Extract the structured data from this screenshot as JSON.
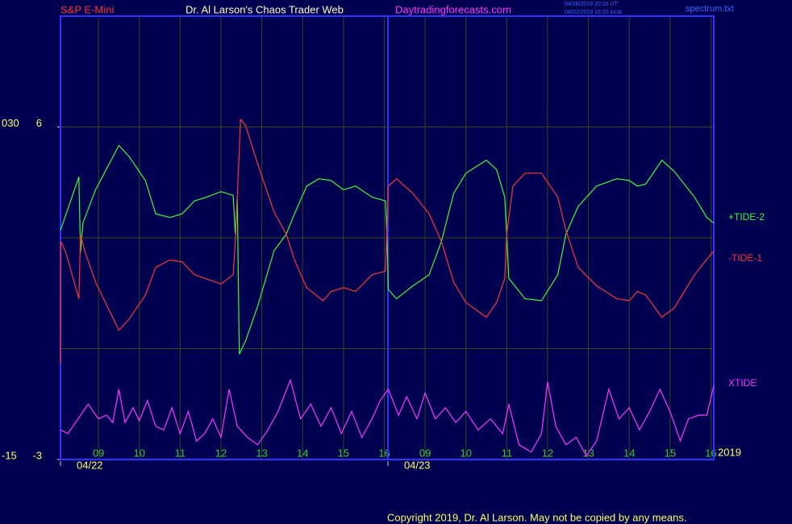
{
  "header": {
    "instrument": "S&P E-Mini",
    "site": "Dr. Al Larson's Chaos Trader Web",
    "url": "Daytradingforecasts.com",
    "time_ut": "04/28/2019 20:20 UT",
    "time_local": "04/02/2019 15:20 local",
    "file": "spectrum.txt"
  },
  "footer": {
    "copyright": "Copyright 2019, Dr. Al Larson. May not be copied by any means.",
    "year": "2019"
  },
  "chart_data": {
    "type": "line",
    "xlim": [
      0.07,
      16.07
    ],
    "xticks": [
      {
        "value": 1,
        "label": "09"
      },
      {
        "value": 2,
        "label": "10"
      },
      {
        "value": 3,
        "label": "11"
      },
      {
        "value": 4,
        "label": "12"
      },
      {
        "value": 5,
        "label": "13"
      },
      {
        "value": 6,
        "label": "14"
      },
      {
        "value": 7,
        "label": "15"
      },
      {
        "value": 8,
        "label": "16"
      },
      {
        "value": 9,
        "label": "09"
      },
      {
        "value": 10,
        "label": "10"
      },
      {
        "value": 11,
        "label": "11"
      },
      {
        "value": 12,
        "label": "12"
      },
      {
        "value": 13,
        "label": "13"
      },
      {
        "value": 14,
        "label": "14"
      },
      {
        "value": 15,
        "label": "15"
      },
      {
        "value": 16,
        "label": "16"
      }
    ],
    "date_labels": [
      {
        "value": 0.07,
        "label": "04/22"
      },
      {
        "value": 8.09,
        "label": "04/23"
      }
    ],
    "ylim": [
      -3,
      9
    ],
    "yticks": [
      -3,
      6
    ],
    "ygrid": [
      0,
      3,
      6
    ],
    "y2lim": [
      -15,
      45
    ],
    "y2ticks": [
      -15,
      {
        "value": 30,
        "label": "030"
      }
    ],
    "grid": true,
    "series": [
      {
        "name": "+TIDE-2",
        "color": "#33ff33",
        "x": [
          0.07,
          0.52,
          0.56,
          0.62,
          0.93,
          1.5,
          1.75,
          2.15,
          2.4,
          2.75,
          3.05,
          3.35,
          3.65,
          4.0,
          4.3,
          4.35,
          4.4,
          4.45,
          4.6,
          4.9,
          5.3,
          5.6,
          5.8,
          6.1,
          6.4,
          6.7,
          7.0,
          7.3,
          7.7,
          8.03,
          8.07,
          8.1,
          8.3,
          8.7,
          9.1,
          9.4,
          9.7,
          10.0,
          10.5,
          10.75,
          10.95,
          11.0,
          11.05,
          11.45,
          11.85,
          12.25,
          12.45,
          12.75,
          13.2,
          13.7,
          14.0,
          14.2,
          14.4,
          14.8,
          15.1,
          15.6,
          15.9,
          16.07
        ],
        "values": [
          3.2,
          4.65,
          2.6,
          3.4,
          4.3,
          5.5,
          5.2,
          4.55,
          3.65,
          3.55,
          3.65,
          4.0,
          4.1,
          4.25,
          4.15,
          3.1,
          4.1,
          -0.15,
          0.2,
          1.15,
          2.65,
          3.1,
          3.65,
          4.4,
          4.6,
          4.55,
          4.3,
          4.4,
          4.1,
          4.0,
          2.9,
          1.6,
          1.35,
          1.7,
          2.0,
          2.9,
          4.2,
          4.75,
          5.1,
          4.85,
          4.1,
          3.1,
          1.9,
          1.35,
          1.3,
          2.0,
          3.1,
          3.85,
          4.4,
          4.6,
          4.55,
          4.4,
          4.45,
          5.1,
          4.8,
          4.1,
          3.55,
          3.4
        ]
      },
      {
        "name": "-TIDE-1",
        "color": "#ff3333",
        "x": [
          0.07,
          0.08,
          0.2,
          0.52,
          0.56,
          0.66,
          0.93,
          1.5,
          1.75,
          2.15,
          2.4,
          2.75,
          3.05,
          3.35,
          3.75,
          4.0,
          4.3,
          4.35,
          4.48,
          4.6,
          4.9,
          5.3,
          5.6,
          5.8,
          6.1,
          6.5,
          6.7,
          7.0,
          7.3,
          7.7,
          8.03,
          8.1,
          8.3,
          8.7,
          9.1,
          9.4,
          9.7,
          10.0,
          10.5,
          10.75,
          10.95,
          11.0,
          11.15,
          11.45,
          11.85,
          12.25,
          12.45,
          12.75,
          13.2,
          13.7,
          14.0,
          14.2,
          14.4,
          14.8,
          15.1,
          15.6,
          16.07
        ],
        "values": [
          -0.4,
          2.9,
          2.6,
          1.35,
          3.1,
          2.65,
          1.8,
          0.5,
          0.8,
          1.45,
          2.2,
          2.4,
          2.35,
          2.0,
          1.85,
          1.75,
          2.0,
          2.85,
          6.2,
          6.05,
          5.0,
          3.7,
          3.1,
          2.4,
          1.65,
          1.3,
          1.55,
          1.65,
          1.55,
          2.0,
          2.1,
          4.4,
          4.6,
          4.2,
          3.65,
          2.9,
          1.8,
          1.25,
          0.85,
          1.25,
          1.9,
          3.1,
          4.4,
          4.75,
          4.75,
          4.1,
          3.2,
          2.2,
          1.7,
          1.35,
          1.3,
          1.55,
          1.45,
          0.85,
          1.1,
          2.0,
          2.65
        ]
      },
      {
        "name": "XTIDE",
        "color": "#ff33ff",
        "x": [
          0.07,
          0.25,
          0.5,
          0.75,
          1.0,
          1.2,
          1.35,
          1.5,
          1.65,
          1.85,
          2.0,
          2.2,
          2.4,
          2.6,
          2.8,
          3.0,
          3.2,
          3.4,
          3.6,
          3.8,
          4.0,
          4.2,
          4.4,
          4.65,
          4.9,
          5.15,
          5.4,
          5.7,
          5.95,
          6.2,
          6.45,
          6.7,
          6.95,
          7.2,
          7.45,
          7.7,
          7.9,
          8.1,
          8.35,
          8.55,
          8.8,
          9.0,
          9.25,
          9.5,
          9.75,
          10.0,
          10.3,
          10.6,
          10.9,
          11.05,
          11.3,
          11.6,
          11.85,
          12.0,
          12.2,
          12.45,
          12.7,
          12.95,
          13.2,
          13.5,
          13.75,
          14.0,
          14.25,
          14.5,
          14.75,
          15.0,
          15.25,
          15.45,
          15.7,
          15.9,
          16.07
        ],
        "values": [
          -2.2,
          -2.3,
          -1.9,
          -1.5,
          -1.9,
          -1.8,
          -2.0,
          -1.1,
          -2.0,
          -1.6,
          -1.95,
          -1.4,
          -2.1,
          -2.2,
          -1.6,
          -2.3,
          -1.7,
          -2.5,
          -2.3,
          -1.9,
          -2.4,
          -1.1,
          -2.1,
          -2.4,
          -2.6,
          -2.2,
          -1.7,
          -0.85,
          -1.9,
          -1.5,
          -2.1,
          -1.6,
          -2.3,
          -1.7,
          -2.4,
          -1.9,
          -1.4,
          -1.1,
          -1.8,
          -1.3,
          -1.9,
          -1.2,
          -1.9,
          -1.6,
          -2.0,
          -1.7,
          -2.2,
          -1.9,
          -2.3,
          -1.5,
          -2.6,
          -2.8,
          -2.3,
          -0.9,
          -2.1,
          -2.6,
          -2.4,
          -2.9,
          -2.5,
          -1.1,
          -1.9,
          -1.6,
          -2.2,
          -1.7,
          -1.1,
          -1.7,
          -2.5,
          -1.9,
          -1.8,
          -1.8,
          -1.0
        ]
      }
    ]
  }
}
